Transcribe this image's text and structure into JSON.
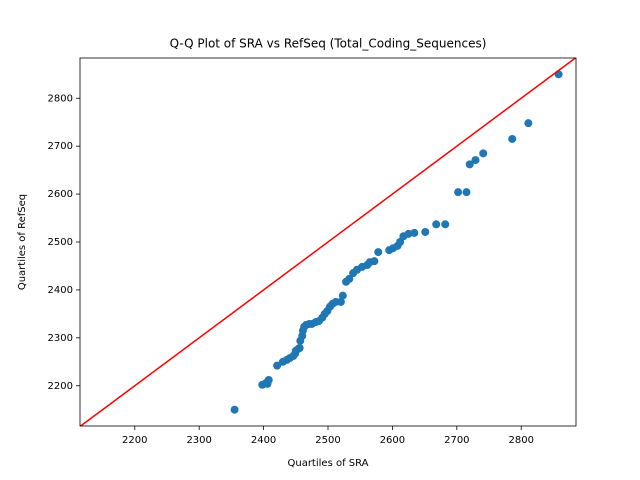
{
  "chart_data": {
    "type": "scatter",
    "title": "Q-Q Plot of SRA vs RefSeq (Total_Coding_Sequences)",
    "x_label": "Quartiles of SRA",
    "y_label": "Quartiles of RefSeq",
    "color": "#1f77b4",
    "line_color": "#ff0000",
    "grid": false,
    "xlim": [
      2115,
      2885
    ],
    "ylim": [
      2116,
      2884
    ],
    "xticks": [
      2200,
      2300,
      2400,
      2500,
      2600,
      2700,
      2800
    ],
    "yticks": [
      2200,
      2300,
      2400,
      2500,
      2600,
      2700,
      2800
    ],
    "x": [
      2355,
      2398,
      2404,
      2408,
      2406,
      2421,
      2430,
      2436,
      2441,
      2446,
      2449,
      2450,
      2454,
      2456,
      2457,
      2460,
      2461,
      2463,
      2466,
      2471,
      2475,
      2481,
      2486,
      2491,
      2495,
      2499,
      2503,
      2507,
      2512,
      2520,
      2523,
      2528,
      2533,
      2539,
      2545,
      2553,
      2561,
      2565,
      2572,
      2578,
      2595,
      2601,
      2608,
      2612,
      2617,
      2625,
      2634,
      2651,
      2668,
      2682,
      2702,
      2715,
      2720,
      2729,
      2741,
      2786,
      2811,
      2858
    ],
    "y": [
      2150,
      2202,
      2206,
      2212,
      2204,
      2242,
      2250,
      2254,
      2258,
      2262,
      2267,
      2273,
      2277,
      2279,
      2294,
      2304,
      2315,
      2323,
      2327,
      2329,
      2329,
      2333,
      2335,
      2342,
      2350,
      2356,
      2365,
      2371,
      2375,
      2375,
      2388,
      2417,
      2423,
      2435,
      2442,
      2448,
      2452,
      2458,
      2460,
      2479,
      2483,
      2487,
      2492,
      2500,
      2512,
      2517,
      2519,
      2521,
      2537,
      2537,
      2604,
      2604,
      2662,
      2671,
      2685,
      2715,
      2748,
      2850
    ]
  }
}
